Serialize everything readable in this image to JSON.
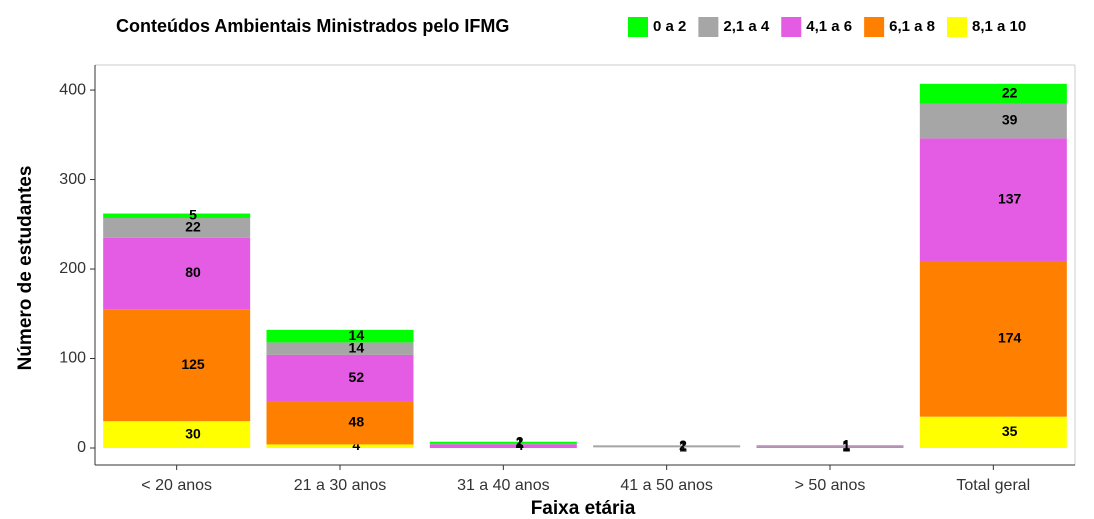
{
  "chart_data": {
    "type": "stacked_bar",
    "legend_title": "Conteúdos Ambientais Ministrados pelo IFMG",
    "x_label": "Faixa etária",
    "y_label": "Número de estudantes",
    "categories": [
      "< 20 anos",
      "21 a 30 anos",
      "31 a 40 anos",
      "41 a 50 anos",
      "> 50 anos",
      "Total geral"
    ],
    "series": [
      {
        "name": "8,1 a 10",
        "color": "#ffff00",
        "values": [
          30,
          4,
          null,
          1,
          null,
          35
        ]
      },
      {
        "name": "6,1 a 8",
        "color": "#ff8000",
        "values": [
          125,
          48,
          null,
          null,
          1,
          174
        ]
      },
      {
        "name": "4,1 a 6",
        "color": "#e35ce3",
        "values": [
          80,
          52,
          4,
          null,
          1,
          137
        ]
      },
      {
        "name": "2,1 a 4",
        "color": "#a6a6a6",
        "values": [
          22,
          14,
          1,
          2,
          null,
          39
        ]
      },
      {
        "name": "0 a 2",
        "color": "#00ff00",
        "values": [
          5,
          14,
          2,
          null,
          1,
          22
        ]
      }
    ],
    "legend_order": [
      4,
      3,
      2,
      1,
      0
    ],
    "ylim": [
      -19,
      428
    ],
    "yticks": [
      0,
      100,
      200,
      300,
      400
    ],
    "legend": "top"
  }
}
